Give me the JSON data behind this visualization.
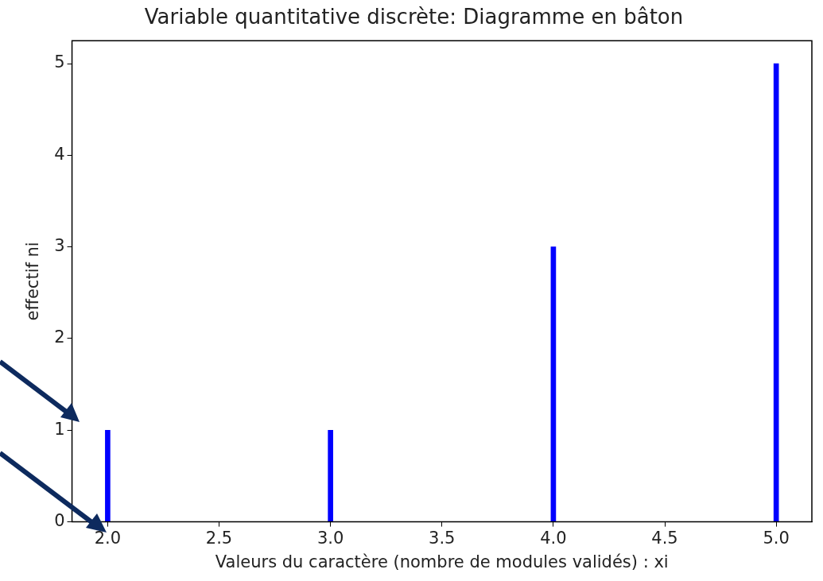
{
  "chart_data": {
    "type": "bar",
    "title": "Variable quantitative discrète: Diagramme en bâton",
    "xlabel": "Valeurs du caractère (nombre de modules validés) : xi",
    "ylabel": "effectif ni",
    "x": [
      2,
      3,
      4,
      5
    ],
    "values": [
      1,
      1,
      3,
      5
    ],
    "color": "#0000ff",
    "xlim": [
      1.84,
      5.16
    ],
    "xticks": [
      {
        "value": 2,
        "label": "2.0"
      },
      {
        "value": 2.5,
        "label": "2.5"
      },
      {
        "value": 3,
        "label": "3.0"
      },
      {
        "value": 3.5,
        "label": "3.5"
      },
      {
        "value": 4,
        "label": "4.0"
      },
      {
        "value": 4.5,
        "label": "4.5"
      },
      {
        "value": 5,
        "label": "5.0"
      }
    ],
    "ylim": [
      0,
      5.25
    ],
    "yticks": [
      0,
      1,
      2,
      3,
      4,
      5
    ]
  }
}
